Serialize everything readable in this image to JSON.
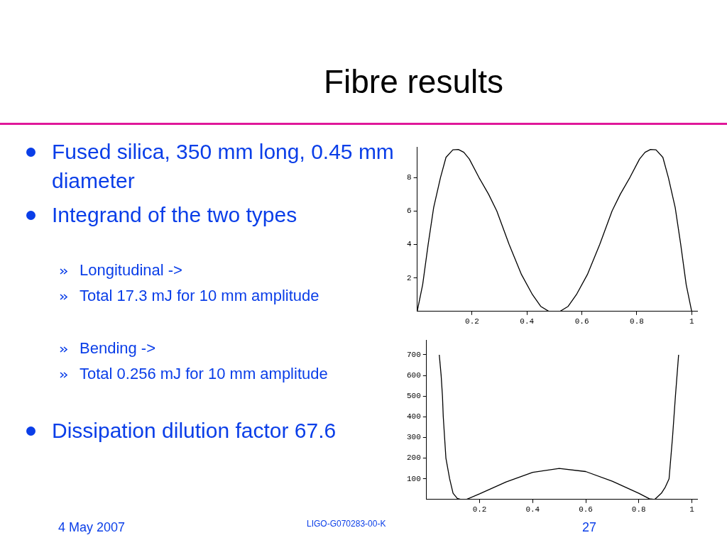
{
  "chart_data": [
    {
      "type": "line",
      "title": "Fibre results",
      "annotations": [
        "Fused silica, 350 mm long, 0.45 mm diameter",
        "Integrand of the two types",
        "Longitudinal ->",
        "Total 17.3 mJ for 10 mm amplitude",
        "Bending ->",
        "Total 0.256 mJ for 10 mm amplitude",
        "Dissipation dilution factor 67.6",
        "4 May 2007",
        "LIGO-G070283-00-K",
        "27"
      ],
      "x": [
        0,
        0.02,
        0.04,
        0.06,
        0.085,
        0.105,
        0.13,
        0.15,
        0.17,
        0.19,
        0.225,
        0.26,
        0.29,
        0.335,
        0.38,
        0.42,
        0.45,
        0.48,
        0.5,
        0.52,
        0.55,
        0.58,
        0.62,
        0.665,
        0.71,
        0.74,
        0.775,
        0.81,
        0.83,
        0.85,
        0.87,
        0.895,
        0.915,
        0.94,
        0.96,
        0.98,
        1
      ],
      "values": [
        0,
        1.6,
        4,
        6.2,
        8,
        9.2,
        9.65,
        9.67,
        9.5,
        9.1,
        8,
        7,
        6,
        4,
        2.2,
        1,
        0.3,
        0,
        0,
        0,
        0.3,
        1,
        2.2,
        4,
        6,
        7,
        8,
        9.1,
        9.5,
        9.67,
        9.65,
        9.2,
        8,
        6.2,
        4,
        1.6,
        0
      ],
      "color": "#000000",
      "marker": "none",
      "xlim": [
        0,
        1.02
      ],
      "ylim": [
        0,
        9.8
      ],
      "xticks": [
        0.2,
        0.4,
        0.6,
        0.8,
        1
      ],
      "yticks": [
        2,
        4,
        6,
        8
      ]
    },
    {
      "type": "line",
      "x": [
        0.048,
        0.055,
        0.06,
        0.063,
        0.068,
        0.073,
        0.087,
        0.1,
        0.116,
        0.13,
        0.15,
        0.2,
        0.3,
        0.4,
        0.5,
        0.6,
        0.7,
        0.8,
        0.84,
        0.86,
        0.885,
        0.9,
        0.914,
        0.927,
        0.938,
        0.95
      ],
      "values": [
        700,
        600,
        500,
        400,
        300,
        200,
        100,
        30,
        5,
        0,
        0,
        27,
        85,
        131,
        150,
        135,
        88,
        30,
        3,
        0,
        30,
        60,
        100,
        300,
        500,
        700
      ],
      "color": "#000000",
      "marker": "none",
      "xlim": [
        0,
        1.02
      ],
      "ylim": [
        0,
        770
      ],
      "xticks": [
        0.2,
        0.4,
        0.6,
        0.8,
        1
      ],
      "yticks": [
        100,
        200,
        300,
        400,
        500,
        600,
        700
      ]
    }
  ]
}
